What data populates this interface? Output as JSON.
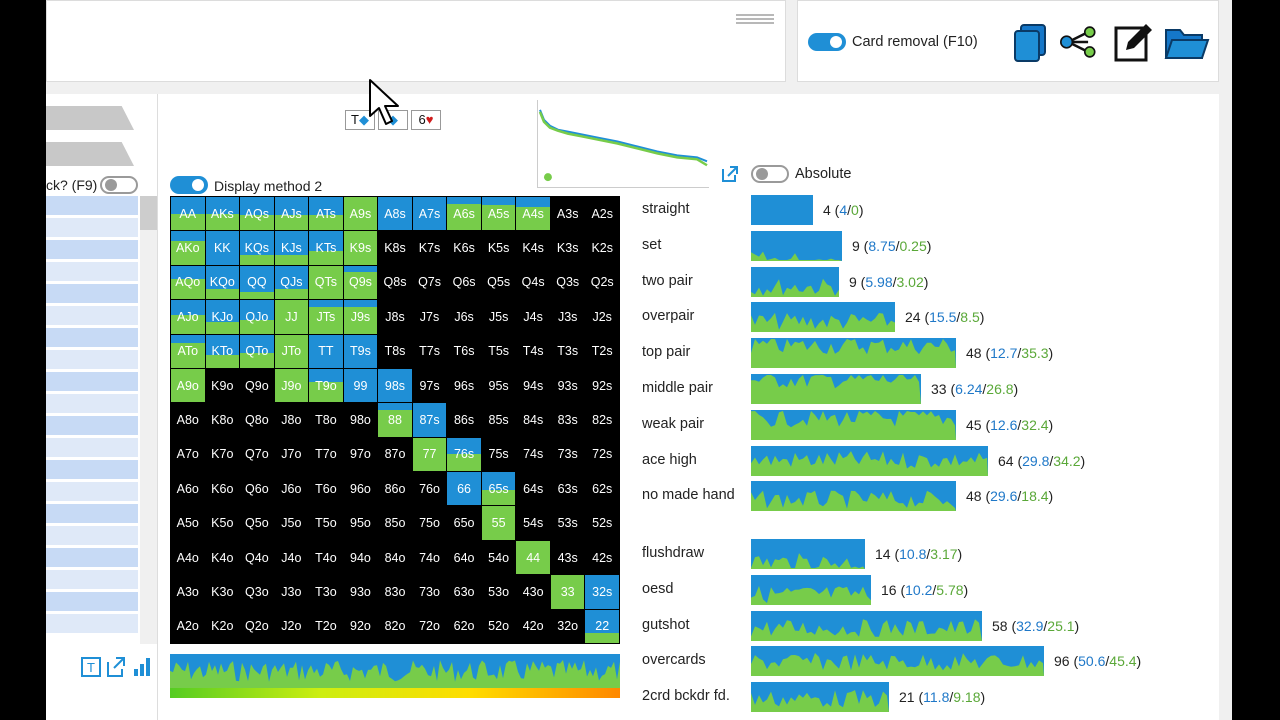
{
  "header": {
    "card_removal_label": "Card removal (F10)",
    "card_removal_on": true
  },
  "toolbar": {
    "icons": [
      "copy-icon",
      "tree-icon",
      "edit-icon",
      "folder-icon"
    ]
  },
  "left_panel": {
    "toggle_label": "ck? (F9)",
    "toggle_on": false
  },
  "board": {
    "cards": [
      {
        "rank": "T",
        "suit": "◆",
        "suit_color": "#1f8fd6"
      },
      {
        "rank": "",
        "suit": "◆",
        "suit_color": "#1f8fd6"
      },
      {
        "rank": "6",
        "suit": "♥",
        "suit_color": "#d01c1c"
      }
    ]
  },
  "grid_controls": {
    "display_method_label": "Display method 2",
    "display_method_on": true
  },
  "categories_controls": {
    "absolute_label": "Absolute",
    "absolute_on": false
  },
  "colors": {
    "blue": "#1f8fd6",
    "green": "#77cc4a",
    "blue_text": "#1f78c8",
    "green_text": "#5aa838"
  },
  "hand_grid": {
    "rows": [
      [
        "AA",
        "AKs",
        "AQs",
        "AJs",
        "ATs",
        "A9s",
        "A8s",
        "A7s",
        "A6s",
        "A5s",
        "A4s",
        "A3s",
        "A2s"
      ],
      [
        "AKo",
        "KK",
        "KQs",
        "KJs",
        "KTs",
        "K9s",
        "K8s",
        "K7s",
        "K6s",
        "K5s",
        "K4s",
        "K3s",
        "K2s"
      ],
      [
        "AQo",
        "KQo",
        "QQ",
        "QJs",
        "QTs",
        "Q9s",
        "Q8s",
        "Q7s",
        "Q6s",
        "Q5s",
        "Q4s",
        "Q3s",
        "Q2s"
      ],
      [
        "AJo",
        "KJo",
        "QJo",
        "JJ",
        "JTs",
        "J9s",
        "J8s",
        "J7s",
        "J6s",
        "J5s",
        "J4s",
        "J3s",
        "J2s"
      ],
      [
        "ATo",
        "KTo",
        "QTo",
        "JTo",
        "TT",
        "T9s",
        "T8s",
        "T7s",
        "T6s",
        "T5s",
        "T4s",
        "T3s",
        "T2s"
      ],
      [
        "A9o",
        "K9o",
        "Q9o",
        "J9o",
        "T9o",
        "99",
        "98s",
        "97s",
        "96s",
        "95s",
        "94s",
        "93s",
        "92s"
      ],
      [
        "A8o",
        "K8o",
        "Q8o",
        "J8o",
        "T8o",
        "98o",
        "88",
        "87s",
        "86s",
        "85s",
        "84s",
        "83s",
        "82s"
      ],
      [
        "A7o",
        "K7o",
        "Q7o",
        "J7o",
        "T7o",
        "97o",
        "87o",
        "77",
        "76s",
        "75s",
        "74s",
        "73s",
        "72s"
      ],
      [
        "A6o",
        "K6o",
        "Q6o",
        "J6o",
        "T6o",
        "96o",
        "86o",
        "76o",
        "66",
        "65s",
        "64s",
        "63s",
        "62s"
      ],
      [
        "A5o",
        "K5o",
        "Q5o",
        "J5o",
        "T5o",
        "95o",
        "85o",
        "75o",
        "65o",
        "55",
        "54s",
        "53s",
        "52s"
      ],
      [
        "A4o",
        "K4o",
        "Q4o",
        "J4o",
        "T4o",
        "94o",
        "84o",
        "74o",
        "64o",
        "54o",
        "44",
        "43s",
        "42s"
      ],
      [
        "A3o",
        "K3o",
        "Q3o",
        "J3o",
        "T3o",
        "93o",
        "83o",
        "73o",
        "63o",
        "53o",
        "43o",
        "33",
        "32s"
      ],
      [
        "A2o",
        "K2o",
        "Q2o",
        "J2o",
        "T2o",
        "92o",
        "82o",
        "72o",
        "62o",
        "52o",
        "42o",
        "32o",
        "22"
      ]
    ],
    "fills": [
      [
        [
          1,
          0.5
        ],
        [
          1,
          0.5
        ],
        [
          1,
          0.45
        ],
        [
          1,
          0.45
        ],
        [
          1,
          0.45
        ],
        [
          1,
          1
        ],
        [
          1,
          0
        ],
        [
          1,
          0
        ],
        [
          1,
          0.8
        ],
        [
          1,
          0.75
        ],
        [
          1,
          0.7
        ],
        [
          0,
          0
        ],
        [
          0,
          0
        ]
      ],
      [
        [
          1,
          0.7
        ],
        [
          1,
          0
        ],
        [
          1,
          0.3
        ],
        [
          1,
          0.3
        ],
        [
          1,
          0.4
        ],
        [
          1,
          1
        ],
        [
          0,
          0
        ],
        [
          0,
          0
        ],
        [
          0,
          0
        ],
        [
          0,
          0
        ],
        [
          0,
          0
        ],
        [
          0,
          0
        ],
        [
          0,
          0
        ]
      ],
      [
        [
          1,
          0.6
        ],
        [
          1,
          0.3
        ],
        [
          1,
          0.2
        ],
        [
          1,
          0.3
        ],
        [
          1,
          1
        ],
        [
          1,
          0.8
        ],
        [
          0,
          0
        ],
        [
          0,
          0
        ],
        [
          0,
          0
        ],
        [
          0,
          0
        ],
        [
          0,
          0
        ],
        [
          0,
          0
        ],
        [
          0,
          0
        ]
      ],
      [
        [
          1,
          0.55
        ],
        [
          1,
          0.35
        ],
        [
          1,
          0.4
        ],
        [
          1,
          1
        ],
        [
          1,
          0.8
        ],
        [
          1,
          0.8
        ],
        [
          0,
          0
        ],
        [
          0,
          0
        ],
        [
          0,
          0
        ],
        [
          0,
          0
        ],
        [
          0,
          0
        ],
        [
          0,
          0
        ],
        [
          0,
          0
        ]
      ],
      [
        [
          1,
          0.75
        ],
        [
          1,
          0.4
        ],
        [
          1,
          0.45
        ],
        [
          1,
          1
        ],
        [
          1,
          0
        ],
        [
          1,
          0
        ],
        [
          0,
          0
        ],
        [
          0,
          0
        ],
        [
          0,
          0
        ],
        [
          0,
          0
        ],
        [
          0,
          0
        ],
        [
          0,
          0
        ],
        [
          0,
          0
        ]
      ],
      [
        [
          1,
          1
        ],
        [
          0,
          0
        ],
        [
          0,
          0
        ],
        [
          1,
          1
        ],
        [
          1,
          0.6
        ],
        [
          1,
          0
        ],
        [
          1,
          0
        ],
        [
          0,
          0
        ],
        [
          0,
          0
        ],
        [
          0,
          0
        ],
        [
          0,
          0
        ],
        [
          0,
          0
        ],
        [
          0,
          0
        ]
      ],
      [
        [
          0,
          0
        ],
        [
          0,
          0
        ],
        [
          0,
          0
        ],
        [
          0,
          0
        ],
        [
          0,
          0
        ],
        [
          0,
          0
        ],
        [
          1,
          0.8
        ],
        [
          1,
          0
        ],
        [
          0,
          0
        ],
        [
          0,
          0
        ],
        [
          0,
          0
        ],
        [
          0,
          0
        ],
        [
          0,
          0
        ]
      ],
      [
        [
          0,
          0
        ],
        [
          0,
          0
        ],
        [
          0,
          0
        ],
        [
          0,
          0
        ],
        [
          0,
          0
        ],
        [
          0,
          0
        ],
        [
          0,
          0
        ],
        [
          1,
          1
        ],
        [
          1,
          0.5
        ],
        [
          0,
          0
        ],
        [
          0,
          0
        ],
        [
          0,
          0
        ],
        [
          0,
          0
        ]
      ],
      [
        [
          0,
          0
        ],
        [
          0,
          0
        ],
        [
          0,
          0
        ],
        [
          0,
          0
        ],
        [
          0,
          0
        ],
        [
          0,
          0
        ],
        [
          0,
          0
        ],
        [
          0,
          0
        ],
        [
          1,
          0
        ],
        [
          1,
          0.45
        ],
        [
          0,
          0
        ],
        [
          0,
          0
        ],
        [
          0,
          0
        ]
      ],
      [
        [
          0,
          0
        ],
        [
          0,
          0
        ],
        [
          0,
          0
        ],
        [
          0,
          0
        ],
        [
          0,
          0
        ],
        [
          0,
          0
        ],
        [
          0,
          0
        ],
        [
          0,
          0
        ],
        [
          0,
          0
        ],
        [
          1,
          1
        ],
        [
          0,
          0
        ],
        [
          0,
          0
        ],
        [
          0,
          0
        ]
      ],
      [
        [
          0,
          0
        ],
        [
          0,
          0
        ],
        [
          0,
          0
        ],
        [
          0,
          0
        ],
        [
          0,
          0
        ],
        [
          0,
          0
        ],
        [
          0,
          0
        ],
        [
          0,
          0
        ],
        [
          0,
          0
        ],
        [
          0,
          0
        ],
        [
          1,
          1
        ],
        [
          0,
          0
        ],
        [
          0,
          0
        ]
      ],
      [
        [
          0,
          0
        ],
        [
          0,
          0
        ],
        [
          0,
          0
        ],
        [
          0,
          0
        ],
        [
          0,
          0
        ],
        [
          0,
          0
        ],
        [
          0,
          0
        ],
        [
          0,
          0
        ],
        [
          0,
          0
        ],
        [
          0,
          0
        ],
        [
          0,
          0
        ],
        [
          1,
          1
        ],
        [
          1,
          0
        ]
      ],
      [
        [
          0,
          0
        ],
        [
          0,
          0
        ],
        [
          0,
          0
        ],
        [
          0,
          0
        ],
        [
          0,
          0
        ],
        [
          0,
          0
        ],
        [
          0,
          0
        ],
        [
          0,
          0
        ],
        [
          0,
          0
        ],
        [
          0,
          0
        ],
        [
          0,
          0
        ],
        [
          0,
          0
        ],
        [
          1,
          0.3
        ]
      ]
    ]
  },
  "categories": {
    "made_hands": [
      {
        "name": "straight",
        "total": "4",
        "blue": "4",
        "green": "0",
        "length": 0.21,
        "green_share": 0.0
      },
      {
        "name": "set",
        "total": "9",
        "blue": "8.75",
        "green": "0.25",
        "length": 0.31,
        "green_share": 0.03
      },
      {
        "name": "two pair",
        "total": "9",
        "blue": "5.98",
        "green": "3.02",
        "length": 0.3,
        "green_share": 0.34
      },
      {
        "name": "overpair",
        "total": "24",
        "blue": "15.5",
        "green": "8.5",
        "length": 0.49,
        "green_share": 0.35
      },
      {
        "name": "top pair",
        "total": "48",
        "blue": "12.7",
        "green": "35.3",
        "length": 0.7,
        "green_share": 0.74
      },
      {
        "name": "middle pair",
        "total": "33",
        "blue": "6.24",
        "green": "26.8",
        "length": 0.58,
        "green_share": 0.81
      },
      {
        "name": "weak pair",
        "total": "45",
        "blue": "12.6",
        "green": "32.4",
        "length": 0.7,
        "green_share": 0.72
      },
      {
        "name": "ace high",
        "total": "64",
        "blue": "29.8",
        "green": "34.2",
        "length": 0.81,
        "green_share": 0.53
      },
      {
        "name": "no made hand",
        "total": "48",
        "blue": "29.6",
        "green": "18.4",
        "length": 0.7,
        "green_share": 0.38
      }
    ],
    "draws": [
      {
        "name": "flushdraw",
        "total": "14",
        "blue": "10.8",
        "green": "3.17",
        "length": 0.39,
        "green_share": 0.23
      },
      {
        "name": "oesd",
        "total": "16",
        "blue": "10.2",
        "green": "5.78",
        "length": 0.41,
        "green_share": 0.36
      },
      {
        "name": "gutshot",
        "total": "58",
        "blue": "32.9",
        "green": "25.1",
        "length": 0.79,
        "green_share": 0.43
      },
      {
        "name": "overcards",
        "total": "96",
        "blue": "50.6",
        "green": "45.4",
        "length": 1.0,
        "green_share": 0.47
      },
      {
        "name": "2crd bckdr fd.",
        "total": "21",
        "blue": "11.8",
        "green": "9.18",
        "length": 0.47,
        "green_share": 0.44
      }
    ]
  }
}
